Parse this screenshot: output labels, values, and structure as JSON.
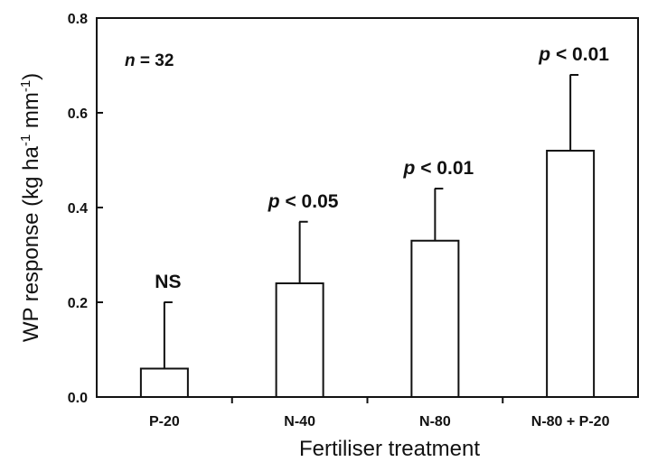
{
  "chart_data": {
    "type": "bar",
    "categories": [
      "P-20",
      "N-40",
      "N-80",
      "N-80 + P-20"
    ],
    "values": [
      0.06,
      0.24,
      0.33,
      0.52
    ],
    "error_upper": [
      0.2,
      0.37,
      0.44,
      0.68
    ],
    "significance": [
      {
        "prefix": "",
        "suffix": "NS"
      },
      {
        "prefix": "p",
        "suffix": " < 0.05"
      },
      {
        "prefix": "p",
        "suffix": " < 0.01"
      },
      {
        "prefix": "p",
        "suffix": " < 0.01"
      }
    ],
    "annotation": {
      "var": "n",
      "text": " = 32"
    },
    "xlabel": "Fertiliser treatment",
    "ylabel": {
      "main": "WP response (kg ha",
      "sup1": "-1",
      "mid": " mm",
      "sup2": "-1",
      "end": ")"
    },
    "ylim": [
      0,
      0.8
    ],
    "yticks": [
      "0.0",
      "0.2",
      "0.4",
      "0.6",
      "0.8"
    ],
    "grid": false,
    "bar_fill": "#ffffff",
    "stroke_color": "#111111"
  }
}
